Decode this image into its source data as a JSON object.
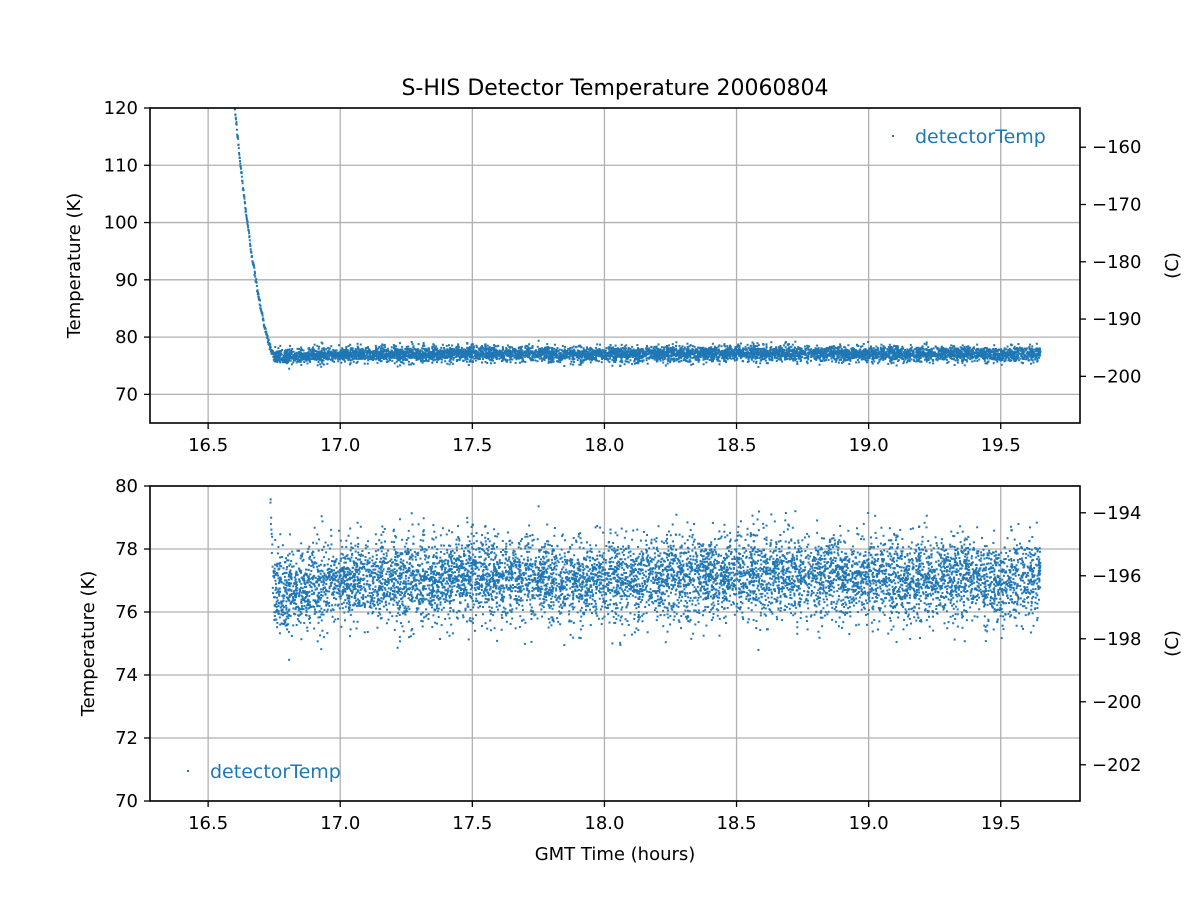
{
  "figure": {
    "title": "S-HIS Detector Temperature 20060804",
    "xlabel": "GMT Time (hours)"
  },
  "chart_data": [
    {
      "type": "scatter",
      "title": "S-HIS Detector Temperature 20060804",
      "xlabel": "",
      "ylabel": "Temperature (K)",
      "y2label": "(C)",
      "xlim": [
        16.28,
        19.8
      ],
      "ylim": [
        65,
        120
      ],
      "y2lim": [
        -208.15,
        -153.15
      ],
      "xticks": [
        "16.5",
        "17.0",
        "17.5",
        "18.0",
        "18.5",
        "19.0",
        "19.5"
      ],
      "yticks": [
        "70",
        "80",
        "90",
        "100",
        "110",
        "120"
      ],
      "y2ticks": [
        "−200",
        "−190",
        "−180",
        "−170",
        "−160"
      ],
      "grid": true,
      "legend": "top-right",
      "series": [
        {
          "name": "detectorTemp",
          "color": "#1f77b4",
          "marker": "point",
          "points": [
            [
              16.6,
              120.5
            ],
            [
              16.62,
              111.0
            ],
            [
              16.64,
              103.0
            ],
            [
              16.66,
              96.0
            ],
            [
              16.68,
              90.0
            ],
            [
              16.7,
              85.0
            ],
            [
              16.72,
              80.5
            ],
            [
              16.74,
              77.5
            ],
            [
              16.75,
              76.5
            ],
            [
              17.0,
              77.0
            ],
            [
              17.5,
              77.1
            ],
            [
              18.0,
              77.0
            ],
            [
              18.5,
              77.2
            ],
            [
              19.0,
              77.1
            ],
            [
              19.5,
              77.0
            ],
            [
              19.65,
              77.2
            ]
          ],
          "baseline": {
            "x_start": 16.75,
            "x_end": 19.65,
            "center": 77.1,
            "spread": 1.2,
            "min": 74.2,
            "max": 80.5
          }
        }
      ]
    },
    {
      "type": "scatter",
      "title": "",
      "xlabel": "GMT Time (hours)",
      "ylabel": "Temperature (K)",
      "y2label": "(C)",
      "xlim": [
        16.28,
        19.8
      ],
      "ylim": [
        70,
        80
      ],
      "y2lim": [
        -203.15,
        -193.15
      ],
      "xticks": [
        "16.5",
        "17.0",
        "17.5",
        "18.0",
        "18.5",
        "19.0",
        "19.5"
      ],
      "yticks": [
        "70",
        "72",
        "74",
        "76",
        "78",
        "80"
      ],
      "y2ticks": [
        "−202",
        "−200",
        "−198",
        "−196",
        "−194"
      ],
      "grid": true,
      "legend": "bottom-left",
      "series": [
        {
          "name": "detectorTemp",
          "color": "#1f77b4",
          "marker": "point",
          "points": [
            [
              16.735,
              80.0
            ],
            [
              16.74,
              78.5
            ],
            [
              16.745,
              77.2
            ],
            [
              16.75,
              76.5
            ],
            [
              17.0,
              77.0
            ],
            [
              17.5,
              77.1
            ],
            [
              18.0,
              77.0
            ],
            [
              18.5,
              77.2
            ],
            [
              19.0,
              77.1
            ],
            [
              19.5,
              77.0
            ],
            [
              19.65,
              77.2
            ]
          ],
          "baseline": {
            "x_start": 16.75,
            "x_end": 19.65,
            "center": 77.1,
            "spread": 1.2,
            "min": 74.2,
            "max": 80.0
          }
        }
      ]
    }
  ]
}
